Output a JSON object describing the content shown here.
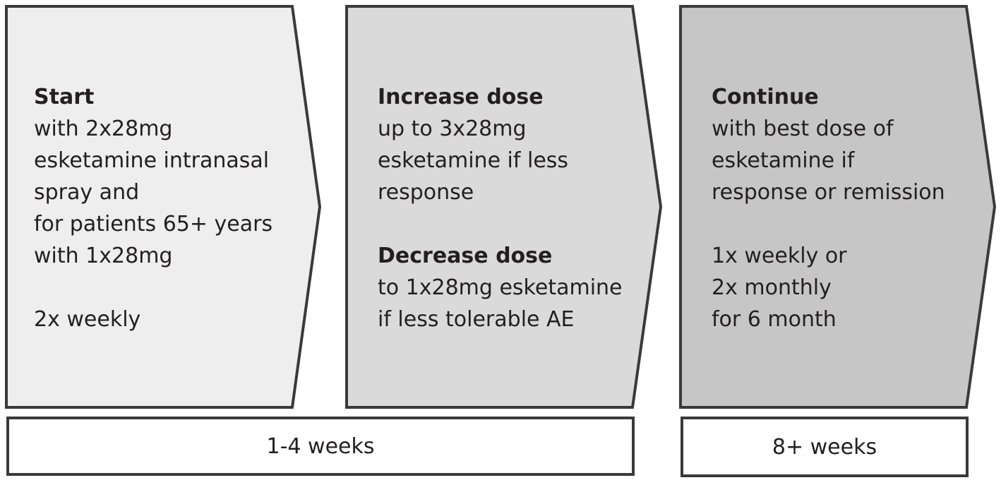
{
  "steps": [
    {
      "title": "Start",
      "lines_a": [
        "with 2x28mg",
        "esketamine intranasal",
        "spray and",
        "for patients 65+ years",
        "with 1x28mg"
      ],
      "lines_b": [
        "2x weekly"
      ],
      "fill": "#eeeeee"
    },
    {
      "title": "Increase dose",
      "lines_a": [
        "up to 3x28mg",
        "esketamine if less",
        "response"
      ],
      "title_b": "Decrease dose",
      "lines_b": [
        "to 1x28mg esketamine",
        "if less tolerable AE"
      ],
      "fill": "#dadada"
    },
    {
      "title": "Continue",
      "lines_a": [
        "with best dose of",
        "esketamine if",
        "response or remission"
      ],
      "lines_b": [
        "1x weekly or",
        "2x monthly",
        "for 6 month"
      ],
      "fill": "#c6c6c6"
    }
  ],
  "durations": {
    "first": "1-4 weeks",
    "second": "8+ weeks"
  },
  "colors": {
    "border": "#3a3a3a",
    "text": "#231f20"
  }
}
